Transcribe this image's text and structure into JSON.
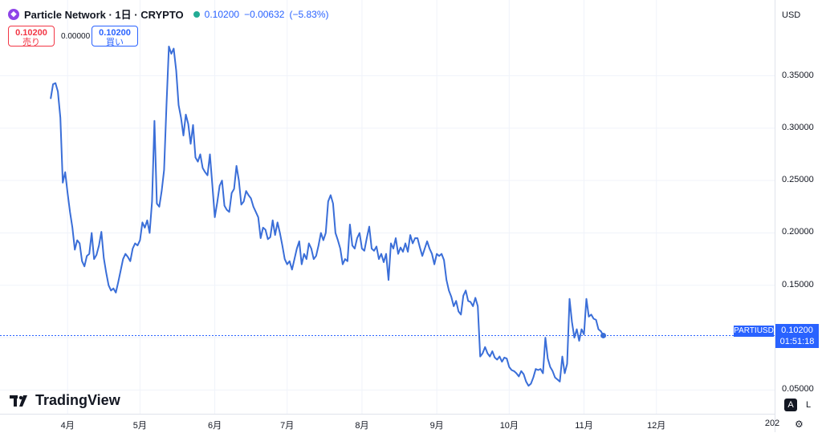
{
  "header": {
    "title": "Particle Network · 1日 · CRYPTO",
    "price": "0.10200",
    "change": "−0.00632",
    "change_pct": "(−5.83%)"
  },
  "quote_boxes": {
    "sell_price": "0.10200",
    "sell_label": "売り",
    "spread": "0.00000",
    "buy_price": "0.10200",
    "buy_label": "買い"
  },
  "axis": {
    "currency": "USD",
    "date_tail": "202"
  },
  "price_tag": {
    "symbol": "PARTIUSD",
    "price": "0.10200",
    "countdown": "01:51:18"
  },
  "branding": {
    "name": "TradingView"
  },
  "scale_buttons": {
    "auto": "A",
    "log": "L"
  },
  "colors": {
    "line": "#3a6ed8",
    "accent": "#2962ff",
    "sell": "#f23645",
    "live": "#22ab94"
  },
  "chart_data": {
    "type": "line",
    "title": "",
    "xlabel": "",
    "ylabel": "",
    "x_unit": "day",
    "x_ticks": [
      {
        "label": "4月",
        "x": "2025-04-01"
      },
      {
        "label": "5月",
        "x": "2025-05-01"
      },
      {
        "label": "6月",
        "x": "2025-06-01"
      },
      {
        "label": "7月",
        "x": "2025-07-01"
      },
      {
        "label": "8月",
        "x": "2025-08-01"
      },
      {
        "label": "9月",
        "x": "2025-09-01"
      },
      {
        "label": "10月",
        "x": "2025-10-01"
      },
      {
        "label": "11月",
        "x": "2025-11-01"
      },
      {
        "label": "12月",
        "x": "2025-12-01"
      }
    ],
    "xlim": [
      "2025-03-04",
      "2026-01-19"
    ],
    "y_ticks": [
      "0.35000",
      "0.30000",
      "0.25000",
      "0.20000",
      "0.15000",
      "0.10000",
      "0.05000"
    ],
    "ylim": [
      0.0273,
      0.4224
    ],
    "grid": true,
    "last_value": 0.102,
    "series": [
      {
        "values": [
          [
            "2025-03-25",
            0.328
          ],
          [
            "2025-03-26",
            0.342
          ],
          [
            "2025-03-27",
            0.343
          ],
          [
            "2025-03-28",
            0.335
          ],
          [
            "2025-03-29",
            0.31
          ],
          [
            "2025-03-30",
            0.248
          ],
          [
            "2025-03-31",
            0.258
          ],
          [
            "2025-04-01",
            0.238
          ],
          [
            "2025-04-02",
            0.22
          ],
          [
            "2025-04-03",
            0.205
          ],
          [
            "2025-04-04",
            0.184
          ],
          [
            "2025-04-05",
            0.193
          ],
          [
            "2025-04-06",
            0.19
          ],
          [
            "2025-04-07",
            0.173
          ],
          [
            "2025-04-08",
            0.168
          ],
          [
            "2025-04-09",
            0.178
          ],
          [
            "2025-04-10",
            0.18
          ],
          [
            "2025-04-11",
            0.2
          ],
          [
            "2025-04-12",
            0.175
          ],
          [
            "2025-04-13",
            0.179
          ],
          [
            "2025-04-14",
            0.188
          ],
          [
            "2025-04-15",
            0.201
          ],
          [
            "2025-04-16",
            0.176
          ],
          [
            "2025-04-17",
            0.162
          ],
          [
            "2025-04-18",
            0.15
          ],
          [
            "2025-04-19",
            0.145
          ],
          [
            "2025-04-20",
            0.147
          ],
          [
            "2025-04-21",
            0.143
          ],
          [
            "2025-04-22",
            0.153
          ],
          [
            "2025-04-23",
            0.164
          ],
          [
            "2025-04-24",
            0.175
          ],
          [
            "2025-04-25",
            0.18
          ],
          [
            "2025-04-26",
            0.177
          ],
          [
            "2025-04-27",
            0.173
          ],
          [
            "2025-04-28",
            0.185
          ],
          [
            "2025-04-29",
            0.19
          ],
          [
            "2025-04-30",
            0.188
          ],
          [
            "2025-05-01",
            0.193
          ],
          [
            "2025-05-02",
            0.21
          ],
          [
            "2025-05-03",
            0.205
          ],
          [
            "2025-05-04",
            0.212
          ],
          [
            "2025-05-05",
            0.2
          ],
          [
            "2025-05-06",
            0.23
          ],
          [
            "2025-05-07",
            0.307
          ],
          [
            "2025-05-08",
            0.228
          ],
          [
            "2025-05-09",
            0.225
          ],
          [
            "2025-05-10",
            0.24
          ],
          [
            "2025-05-11",
            0.26
          ],
          [
            "2025-05-12",
            0.322
          ],
          [
            "2025-05-13",
            0.378
          ],
          [
            "2025-05-14",
            0.371
          ],
          [
            "2025-05-15",
            0.376
          ],
          [
            "2025-05-16",
            0.355
          ],
          [
            "2025-05-17",
            0.322
          ],
          [
            "2025-05-18",
            0.31
          ],
          [
            "2025-05-19",
            0.293
          ],
          [
            "2025-05-20",
            0.313
          ],
          [
            "2025-05-21",
            0.304
          ],
          [
            "2025-05-22",
            0.285
          ],
          [
            "2025-05-23",
            0.303
          ],
          [
            "2025-05-24",
            0.272
          ],
          [
            "2025-05-25",
            0.268
          ],
          [
            "2025-05-26",
            0.275
          ],
          [
            "2025-05-27",
            0.262
          ],
          [
            "2025-05-28",
            0.258
          ],
          [
            "2025-05-29",
            0.255
          ],
          [
            "2025-05-30",
            0.275
          ],
          [
            "2025-05-31",
            0.246
          ],
          [
            "2025-06-01",
            0.215
          ],
          [
            "2025-06-02",
            0.229
          ],
          [
            "2025-06-03",
            0.245
          ],
          [
            "2025-06-04",
            0.25
          ],
          [
            "2025-06-05",
            0.226
          ],
          [
            "2025-06-06",
            0.222
          ],
          [
            "2025-06-07",
            0.22
          ],
          [
            "2025-06-08",
            0.238
          ],
          [
            "2025-06-09",
            0.242
          ],
          [
            "2025-06-10",
            0.264
          ],
          [
            "2025-06-11",
            0.25
          ],
          [
            "2025-06-12",
            0.227
          ],
          [
            "2025-06-13",
            0.23
          ],
          [
            "2025-06-14",
            0.24
          ],
          [
            "2025-06-15",
            0.236
          ],
          [
            "2025-06-16",
            0.233
          ],
          [
            "2025-06-17",
            0.225
          ],
          [
            "2025-06-18",
            0.22
          ],
          [
            "2025-06-19",
            0.215
          ],
          [
            "2025-06-20",
            0.195
          ],
          [
            "2025-06-21",
            0.205
          ],
          [
            "2025-06-22",
            0.203
          ],
          [
            "2025-06-23",
            0.194
          ],
          [
            "2025-06-24",
            0.196
          ],
          [
            "2025-06-25",
            0.212
          ],
          [
            "2025-06-26",
            0.198
          ],
          [
            "2025-06-27",
            0.21
          ],
          [
            "2025-06-28",
            0.2
          ],
          [
            "2025-06-29",
            0.188
          ],
          [
            "2025-06-30",
            0.175
          ],
          [
            "2025-07-01",
            0.17
          ],
          [
            "2025-07-02",
            0.173
          ],
          [
            "2025-07-03",
            0.165
          ],
          [
            "2025-07-04",
            0.175
          ],
          [
            "2025-07-05",
            0.185
          ],
          [
            "2025-07-06",
            0.192
          ],
          [
            "2025-07-07",
            0.17
          ],
          [
            "2025-07-08",
            0.18
          ],
          [
            "2025-07-09",
            0.175
          ],
          [
            "2025-07-10",
            0.19
          ],
          [
            "2025-07-11",
            0.185
          ],
          [
            "2025-07-12",
            0.175
          ],
          [
            "2025-07-13",
            0.178
          ],
          [
            "2025-07-14",
            0.188
          ],
          [
            "2025-07-15",
            0.2
          ],
          [
            "2025-07-16",
            0.193
          ],
          [
            "2025-07-17",
            0.2
          ],
          [
            "2025-07-18",
            0.23
          ],
          [
            "2025-07-19",
            0.236
          ],
          [
            "2025-07-20",
            0.228
          ],
          [
            "2025-07-21",
            0.2
          ],
          [
            "2025-07-22",
            0.193
          ],
          [
            "2025-07-23",
            0.185
          ],
          [
            "2025-07-24",
            0.17
          ],
          [
            "2025-07-25",
            0.175
          ],
          [
            "2025-07-26",
            0.173
          ],
          [
            "2025-07-27",
            0.208
          ],
          [
            "2025-07-28",
            0.188
          ],
          [
            "2025-07-29",
            0.185
          ],
          [
            "2025-07-30",
            0.195
          ],
          [
            "2025-07-31",
            0.2
          ],
          [
            "2025-08-01",
            0.185
          ],
          [
            "2025-08-02",
            0.183
          ],
          [
            "2025-08-03",
            0.195
          ],
          [
            "2025-08-04",
            0.206
          ],
          [
            "2025-08-05",
            0.185
          ],
          [
            "2025-08-06",
            0.183
          ],
          [
            "2025-08-07",
            0.187
          ],
          [
            "2025-08-08",
            0.175
          ],
          [
            "2025-08-09",
            0.18
          ],
          [
            "2025-08-10",
            0.172
          ],
          [
            "2025-08-11",
            0.18
          ],
          [
            "2025-08-12",
            0.155
          ],
          [
            "2025-08-13",
            0.19
          ],
          [
            "2025-08-14",
            0.185
          ],
          [
            "2025-08-15",
            0.195
          ],
          [
            "2025-08-16",
            0.18
          ],
          [
            "2025-08-17",
            0.186
          ],
          [
            "2025-08-18",
            0.182
          ],
          [
            "2025-08-19",
            0.19
          ],
          [
            "2025-08-20",
            0.182
          ],
          [
            "2025-08-21",
            0.198
          ],
          [
            "2025-08-22",
            0.19
          ],
          [
            "2025-08-23",
            0.195
          ],
          [
            "2025-08-24",
            0.195
          ],
          [
            "2025-08-25",
            0.186
          ],
          [
            "2025-08-26",
            0.178
          ],
          [
            "2025-08-27",
            0.185
          ],
          [
            "2025-08-28",
            0.192
          ],
          [
            "2025-08-29",
            0.185
          ],
          [
            "2025-08-30",
            0.18
          ],
          [
            "2025-08-31",
            0.17
          ],
          [
            "2025-09-01",
            0.18
          ],
          [
            "2025-09-02",
            0.178
          ],
          [
            "2025-09-03",
            0.18
          ],
          [
            "2025-09-04",
            0.174
          ],
          [
            "2025-09-05",
            0.155
          ],
          [
            "2025-09-06",
            0.145
          ],
          [
            "2025-09-07",
            0.139
          ],
          [
            "2025-09-08",
            0.13
          ],
          [
            "2025-09-09",
            0.135
          ],
          [
            "2025-09-10",
            0.125
          ],
          [
            "2025-09-11",
            0.122
          ],
          [
            "2025-09-12",
            0.14
          ],
          [
            "2025-09-13",
            0.145
          ],
          [
            "2025-09-14",
            0.135
          ],
          [
            "2025-09-15",
            0.134
          ],
          [
            "2025-09-16",
            0.13
          ],
          [
            "2025-09-17",
            0.138
          ],
          [
            "2025-09-18",
            0.13
          ],
          [
            "2025-09-19",
            0.082
          ],
          [
            "2025-09-20",
            0.085
          ],
          [
            "2025-09-21",
            0.091
          ],
          [
            "2025-09-22",
            0.085
          ],
          [
            "2025-09-23",
            0.082
          ],
          [
            "2025-09-24",
            0.087
          ],
          [
            "2025-09-25",
            0.081
          ],
          [
            "2025-09-26",
            0.079
          ],
          [
            "2025-09-27",
            0.082
          ],
          [
            "2025-09-28",
            0.077
          ],
          [
            "2025-09-29",
            0.081
          ],
          [
            "2025-09-30",
            0.08
          ],
          [
            "2025-10-01",
            0.072
          ],
          [
            "2025-10-02",
            0.069
          ],
          [
            "2025-10-03",
            0.068
          ],
          [
            "2025-10-04",
            0.066
          ],
          [
            "2025-10-05",
            0.063
          ],
          [
            "2025-10-06",
            0.068
          ],
          [
            "2025-10-07",
            0.065
          ],
          [
            "2025-10-08",
            0.058
          ],
          [
            "2025-10-09",
            0.054
          ],
          [
            "2025-10-10",
            0.056
          ],
          [
            "2025-10-11",
            0.062
          ],
          [
            "2025-10-12",
            0.07
          ],
          [
            "2025-10-13",
            0.069
          ],
          [
            "2025-10-14",
            0.07
          ],
          [
            "2025-10-15",
            0.066
          ],
          [
            "2025-10-16",
            0.1
          ],
          [
            "2025-10-17",
            0.08
          ],
          [
            "2025-10-18",
            0.072
          ],
          [
            "2025-10-19",
            0.068
          ],
          [
            "2025-10-20",
            0.062
          ],
          [
            "2025-10-21",
            0.06
          ],
          [
            "2025-10-22",
            0.058
          ],
          [
            "2025-10-23",
            0.082
          ],
          [
            "2025-10-24",
            0.066
          ],
          [
            "2025-10-25",
            0.075
          ],
          [
            "2025-10-26",
            0.137
          ],
          [
            "2025-10-27",
            0.115
          ],
          [
            "2025-10-28",
            0.1
          ],
          [
            "2025-10-29",
            0.108
          ],
          [
            "2025-10-30",
            0.097
          ],
          [
            "2025-10-31",
            0.108
          ],
          [
            "2025-11-01",
            0.103
          ],
          [
            "2025-11-02",
            0.137
          ],
          [
            "2025-11-03",
            0.12
          ],
          [
            "2025-11-04",
            0.122
          ],
          [
            "2025-11-05",
            0.118
          ],
          [
            "2025-11-06",
            0.117
          ],
          [
            "2025-11-07",
            0.108
          ],
          [
            "2025-11-08",
            0.106
          ],
          [
            "2025-11-09",
            0.102
          ]
        ]
      }
    ]
  }
}
